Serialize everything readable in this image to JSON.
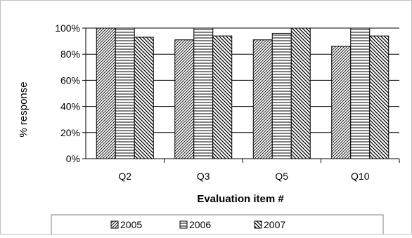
{
  "chart_data": {
    "type": "bar",
    "categories": [
      "Q2",
      "Q3",
      "Q5",
      "Q10"
    ],
    "series": [
      {
        "name": "2005",
        "values": [
          100,
          91,
          91,
          86
        ],
        "pattern": "diagonal-fine"
      },
      {
        "name": "2006",
        "values": [
          100,
          100,
          96,
          100
        ],
        "pattern": "horizontal"
      },
      {
        "name": "2007",
        "values": [
          93,
          94,
          100,
          94
        ],
        "pattern": "diagonal-back"
      }
    ],
    "title": "",
    "xlabel": "Evaluation item #",
    "ylabel": "% response",
    "ylim": [
      0,
      100
    ],
    "yticks": [
      "0%",
      "20%",
      "40%",
      "60%",
      "80%",
      "100%"
    ],
    "grid": true,
    "legend_position": "bottom",
    "legend_entries": [
      "2005",
      "2006",
      "2007"
    ]
  }
}
